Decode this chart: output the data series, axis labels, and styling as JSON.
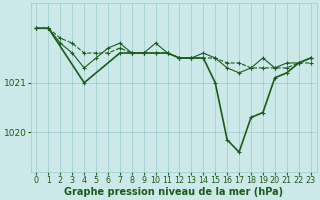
{
  "bg_color": "#cce8e8",
  "line_color": "#1a5c1a",
  "grid_color": "#99cccc",
  "xlabel": "Graphe pression niveau de la mer (hPa)",
  "xlabel_fontsize": 7.0,
  "ylabel_fontsize": 6.5,
  "tick_fontsize": 5.8,
  "xlim": [
    -0.5,
    23.5
  ],
  "ylim": [
    1019.2,
    1022.6
  ],
  "yticks": [
    1020,
    1021
  ],
  "xticks": [
    0,
    1,
    2,
    3,
    4,
    5,
    6,
    7,
    8,
    9,
    10,
    11,
    12,
    13,
    14,
    15,
    16,
    17,
    18,
    19,
    20,
    21,
    22,
    23
  ],
  "series": [
    {
      "x": [
        0,
        1,
        2,
        3,
        4,
        5,
        6,
        7,
        8,
        9,
        10,
        11,
        12,
        13,
        14,
        15,
        16,
        17,
        18,
        19,
        20,
        21,
        22,
        23
      ],
      "y": [
        1022.1,
        1022.1,
        1021.9,
        1021.8,
        1021.6,
        1021.6,
        1021.6,
        1021.7,
        1021.6,
        1021.6,
        1021.6,
        1021.6,
        1021.5,
        1021.5,
        1021.5,
        1021.5,
        1021.4,
        1021.4,
        1021.3,
        1021.3,
        1021.3,
        1021.3,
        1021.4,
        1021.4
      ],
      "style": "--",
      "linewidth": 0.8,
      "marker": "+"
    },
    {
      "x": [
        0,
        1,
        2,
        3,
        4,
        5,
        6,
        7,
        8,
        9,
        10,
        11,
        12,
        13,
        14,
        15,
        16,
        17,
        18,
        19,
        20,
        21,
        22,
        23
      ],
      "y": [
        1022.1,
        1022.1,
        1021.8,
        1021.6,
        1021.3,
        1021.5,
        1021.7,
        1021.8,
        1021.6,
        1021.6,
        1021.8,
        1021.6,
        1021.5,
        1021.5,
        1021.6,
        1021.5,
        1021.3,
        1021.2,
        1021.3,
        1021.5,
        1021.3,
        1021.4,
        1021.4,
        1021.5
      ],
      "style": "-",
      "linewidth": 0.8,
      "marker": "+"
    },
    {
      "x": [
        0,
        1,
        4,
        7,
        8,
        9,
        10,
        11,
        12,
        13,
        14,
        15,
        16,
        17,
        18,
        19,
        20,
        21,
        22,
        23
      ],
      "y": [
        1022.1,
        1022.1,
        1021.0,
        1021.6,
        1021.6,
        1021.6,
        1021.6,
        1021.6,
        1021.5,
        1021.5,
        1021.5,
        1021.0,
        1019.85,
        1019.6,
        1020.3,
        1020.4,
        1021.1,
        1021.2,
        1021.4,
        1021.5
      ],
      "style": "-",
      "linewidth": 1.2,
      "marker": "+"
    }
  ]
}
